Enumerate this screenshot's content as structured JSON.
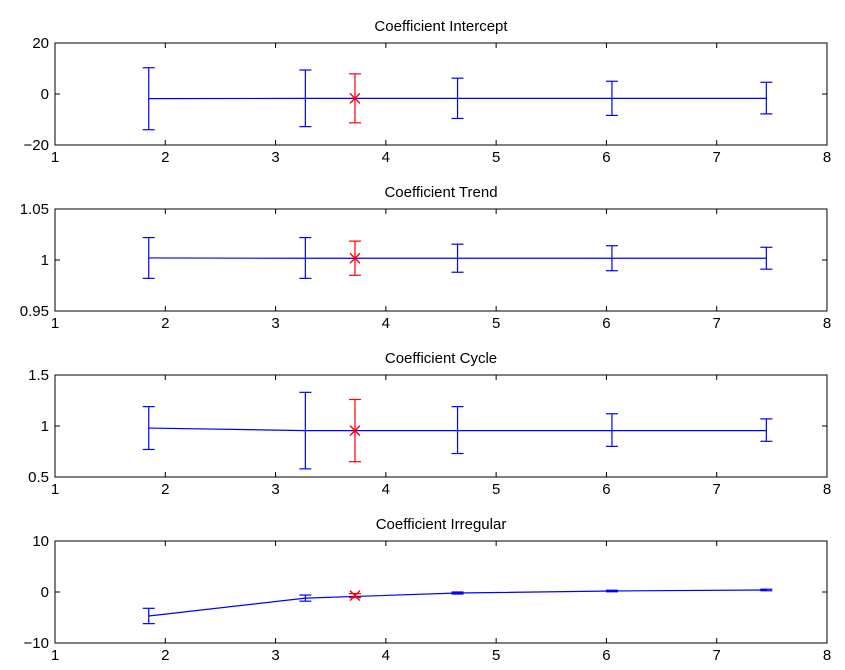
{
  "chart_data": [
    {
      "type": "errorbar",
      "title": "Coefficient Intercept",
      "xlim": [
        1,
        8
      ],
      "ylim": [
        -20,
        20
      ],
      "xticks": [
        1,
        2,
        3,
        4,
        5,
        6,
        7,
        8
      ],
      "yticks": [
        -20,
        0,
        20
      ],
      "ytick_labels": [
        "−20",
        "0",
        "20"
      ],
      "series": [
        {
          "color": "#0000ff",
          "x": [
            1.85,
            3.27,
            4.65,
            6.05,
            7.45
          ],
          "y": [
            -1.8,
            -1.7,
            -1.7,
            -1.7,
            -1.7
          ],
          "lower": [
            -14,
            -12.8,
            -9.6,
            -8.4,
            -7.8
          ],
          "upper": [
            10.3,
            9.4,
            6.2,
            5.0,
            4.6
          ]
        },
        {
          "color": "#ff0000",
          "marker": "x",
          "x": [
            3.72
          ],
          "y": [
            -1.7
          ],
          "lower": [
            -11.3
          ],
          "upper": [
            7.9
          ]
        }
      ]
    },
    {
      "type": "errorbar",
      "title": "Coefficient Trend",
      "xlim": [
        1,
        8
      ],
      "ylim": [
        0.95,
        1.05
      ],
      "xticks": [
        1,
        2,
        3,
        4,
        5,
        6,
        7,
        8
      ],
      "yticks": [
        0.95,
        1,
        1.05
      ],
      "ytick_labels": [
        "0.95",
        "1",
        "1.05"
      ],
      "series": [
        {
          "color": "#0000ff",
          "x": [
            1.85,
            3.27,
            4.65,
            6.05,
            7.45
          ],
          "y": [
            1.002,
            1.0017,
            1.0017,
            1.0017,
            1.0017
          ],
          "lower": [
            0.982,
            0.982,
            0.988,
            0.9895,
            0.991
          ],
          "upper": [
            1.022,
            1.022,
            1.0155,
            1.014,
            1.0125
          ]
        },
        {
          "color": "#ff0000",
          "marker": "x",
          "x": [
            3.72
          ],
          "y": [
            1.0017
          ],
          "lower": [
            0.985
          ],
          "upper": [
            1.0185
          ]
        }
      ]
    },
    {
      "type": "errorbar",
      "title": "Coefficient Cycle",
      "xlim": [
        1,
        8
      ],
      "ylim": [
        0.5,
        1.5
      ],
      "xticks": [
        1,
        2,
        3,
        4,
        5,
        6,
        7,
        8
      ],
      "yticks": [
        0.5,
        1,
        1.5
      ],
      "ytick_labels": [
        "0.5",
        "1",
        "1.5"
      ],
      "series": [
        {
          "color": "#0000ff",
          "x": [
            1.85,
            3.27,
            4.65,
            6.05,
            7.45
          ],
          "y": [
            0.98,
            0.955,
            0.955,
            0.955,
            0.955
          ],
          "lower": [
            0.77,
            0.58,
            0.73,
            0.8,
            0.85
          ],
          "upper": [
            1.19,
            1.33,
            1.19,
            1.12,
            1.07
          ]
        },
        {
          "color": "#ff0000",
          "marker": "x",
          "x": [
            3.72
          ],
          "y": [
            0.955
          ],
          "lower": [
            0.65
          ],
          "upper": [
            1.26
          ]
        }
      ]
    },
    {
      "type": "errorbar",
      "title": "Coefficient Irregular",
      "xlim": [
        1,
        8
      ],
      "ylim": [
        -10,
        10
      ],
      "xticks": [
        1,
        2,
        3,
        4,
        5,
        6,
        7,
        8
      ],
      "yticks": [
        -10,
        0,
        10
      ],
      "ytick_labels": [
        "−10",
        "0",
        "10"
      ],
      "series": [
        {
          "color": "#0000ff",
          "x": [
            1.85,
            3.27,
            4.65,
            6.05,
            7.45
          ],
          "y": [
            -4.7,
            -1.2,
            -0.2,
            0.2,
            0.4
          ],
          "lower": [
            -6.2,
            -1.8,
            -0.4,
            0.05,
            0.25
          ],
          "upper": [
            -3.2,
            -0.6,
            0.0,
            0.35,
            0.55
          ]
        },
        {
          "color": "#ff0000",
          "marker": "x",
          "x": [
            3.72
          ],
          "y": [
            -0.7
          ],
          "lower": [
            -1.1
          ],
          "upper": [
            -0.3
          ]
        }
      ]
    }
  ]
}
